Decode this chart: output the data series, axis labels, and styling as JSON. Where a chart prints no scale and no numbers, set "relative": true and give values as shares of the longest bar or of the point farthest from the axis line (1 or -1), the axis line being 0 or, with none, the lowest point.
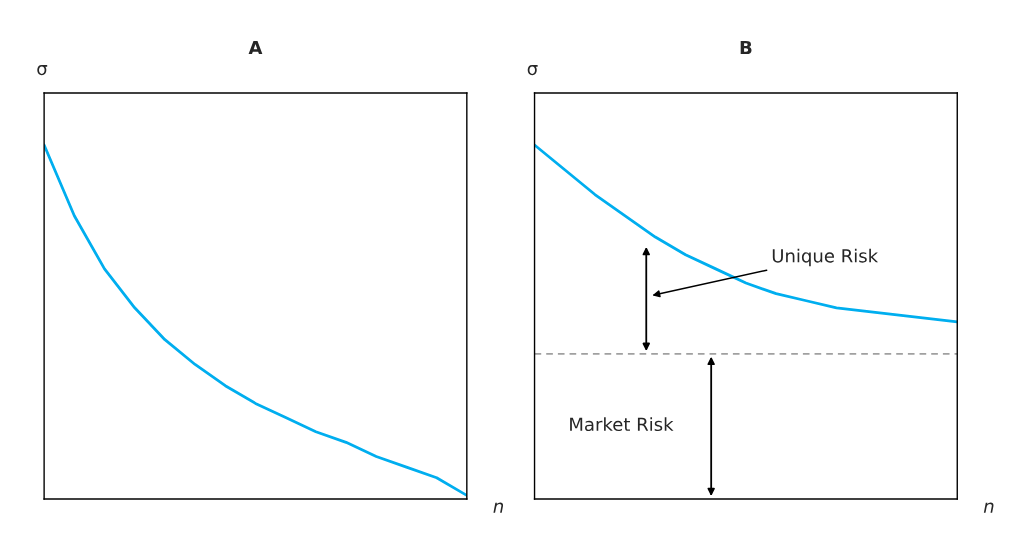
{
  "chart_data": [
    {
      "type": "line",
      "title": "A",
      "ylabel": "σ",
      "xlabel": "n",
      "relative": true,
      "tick_labels": false,
      "categories": [
        null,
        null,
        null,
        null,
        null,
        null,
        null,
        null,
        null,
        null,
        null,
        null,
        null,
        null,
        null
      ],
      "series": [
        {
          "color": "#00aeef",
          "values": [
            1,
            0.8,
            0.65,
            0.54,
            0.45,
            0.38,
            0.32,
            0.27,
            0.23,
            0.19,
            0.16,
            0.12,
            0.09,
            0.06,
            0.01
          ]
        }
      ]
    },
    {
      "type": "line",
      "title": "B",
      "ylabel": "σ",
      "xlabel": "n",
      "relative": true,
      "tick_labels": false,
      "categories": [
        null,
        null,
        null,
        null,
        null,
        null,
        null,
        null,
        null,
        null,
        null,
        null,
        null,
        null,
        null
      ],
      "series": [
        {
          "color": "#00aeef",
          "values": [
            1,
            0.93,
            0.86,
            0.8,
            0.74,
            0.69,
            0.65,
            0.61,
            0.58,
            0.56,
            0.54,
            0.53,
            0.52,
            0.51,
            0.5
          ]
        }
      ],
      "ref_lines": [
        {
          "axis": "y",
          "value": 0.41,
          "color": "#a0a0a0",
          "line_style": "dashed"
        }
      ],
      "annotations": [
        "Unique Risk",
        "Market Risk"
      ]
    }
  ]
}
